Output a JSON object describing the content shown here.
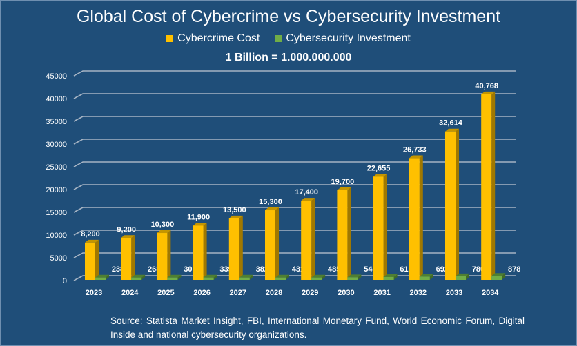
{
  "chart_data": {
    "type": "bar",
    "title": "Global Cost of Cybercrime vs Cybersecurity Investment",
    "subtitle": "1 Billion = 1.000.000.000",
    "categories": [
      "2023",
      "2024",
      "2025",
      "2026",
      "2027",
      "2028",
      "2029",
      "2030",
      "2031",
      "2032",
      "2033",
      "2034"
    ],
    "series": [
      {
        "name": "Cybercrime Cost",
        "color": "#ffc000",
        "values": [
          8200,
          9200,
          10300,
          11900,
          13500,
          15300,
          17400,
          19700,
          22655,
          26733,
          32614,
          40768
        ],
        "labels": [
          "8,200",
          "9,200",
          "10,300",
          "11,900",
          "13,500",
          "15,300",
          "17,400",
          "19,700",
          "22,655",
          "26,733",
          "32,614",
          "40,768"
        ]
      },
      {
        "name": "Cybersecurity Investment",
        "color": "#70ad47",
        "values": [
          238,
          268,
          301,
          339,
          382,
          431,
          485,
          546,
          615,
          692,
          780,
          878
        ],
        "labels": [
          "238",
          "268",
          "301",
          "339",
          "382",
          "431",
          "485",
          "546",
          "615",
          "692",
          "780",
          "878"
        ]
      }
    ],
    "yticks": [
      "0",
      "5000",
      "10000",
      "15000",
      "20000",
      "25000",
      "30000",
      "35000",
      "40000",
      "45000"
    ],
    "ylim": [
      0,
      45000
    ],
    "grid": true,
    "legend": "top",
    "style": "3d-column"
  },
  "source": "Source: Statista Market Insight, FBI, International Monetary Fund, World Economic Forum, Digital Inside and national cybersecurity organizations."
}
